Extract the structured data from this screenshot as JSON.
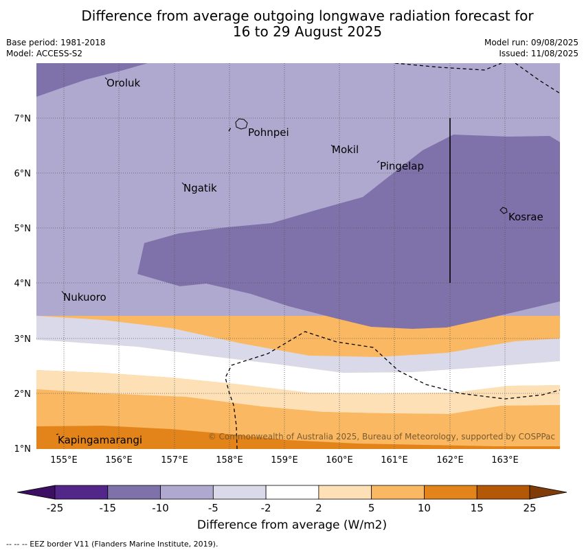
{
  "title_line1": "Difference from average outgoing longwave radiation forecast for",
  "title_line2": "16 to 29 August 2025",
  "base_period": "Base period: 1981-2018",
  "model": "Model: ACCESS-S2",
  "model_run": "Model run: 09/08/2025",
  "issued": "Issued: 11/08/2025",
  "copyright": "© Commonwealth of Australia 2025, Bureau of Meteorology, supported by COSPPac",
  "lat_labels": [
    "7°N",
    "6°N",
    "5°N",
    "4°N",
    "3°N",
    "2°N",
    "1°N"
  ],
  "lon_labels": [
    "155°E",
    "156°E",
    "157°E",
    "158°E",
    "159°E",
    "160°E",
    "161°E",
    "162°E",
    "163°E"
  ],
  "places": [
    "Oroluk",
    "Pohnpei",
    "Mokil",
    "Pingelap",
    "Ngatik",
    "Kosrae",
    "Nukuoro",
    "Kapingamarangi"
  ],
  "colorbar": {
    "ticks": [
      "-25",
      "-15",
      "-10",
      "-5",
      "-2",
      "2",
      "5",
      "10",
      "15",
      "25"
    ],
    "colors": [
      "#3d0f63",
      "#522789",
      "#7f72ab",
      "#b0a9cf",
      "#d9d9ea",
      "#ffffff",
      "#fde0b5",
      "#fbb862",
      "#e3841a",
      "#b35806",
      "#7f3b08"
    ],
    "label": "Difference from average (W/m2)"
  },
  "legend_note": "--  --  -- EEZ border V11 (Flanders Marine Institute, 2019)."
}
